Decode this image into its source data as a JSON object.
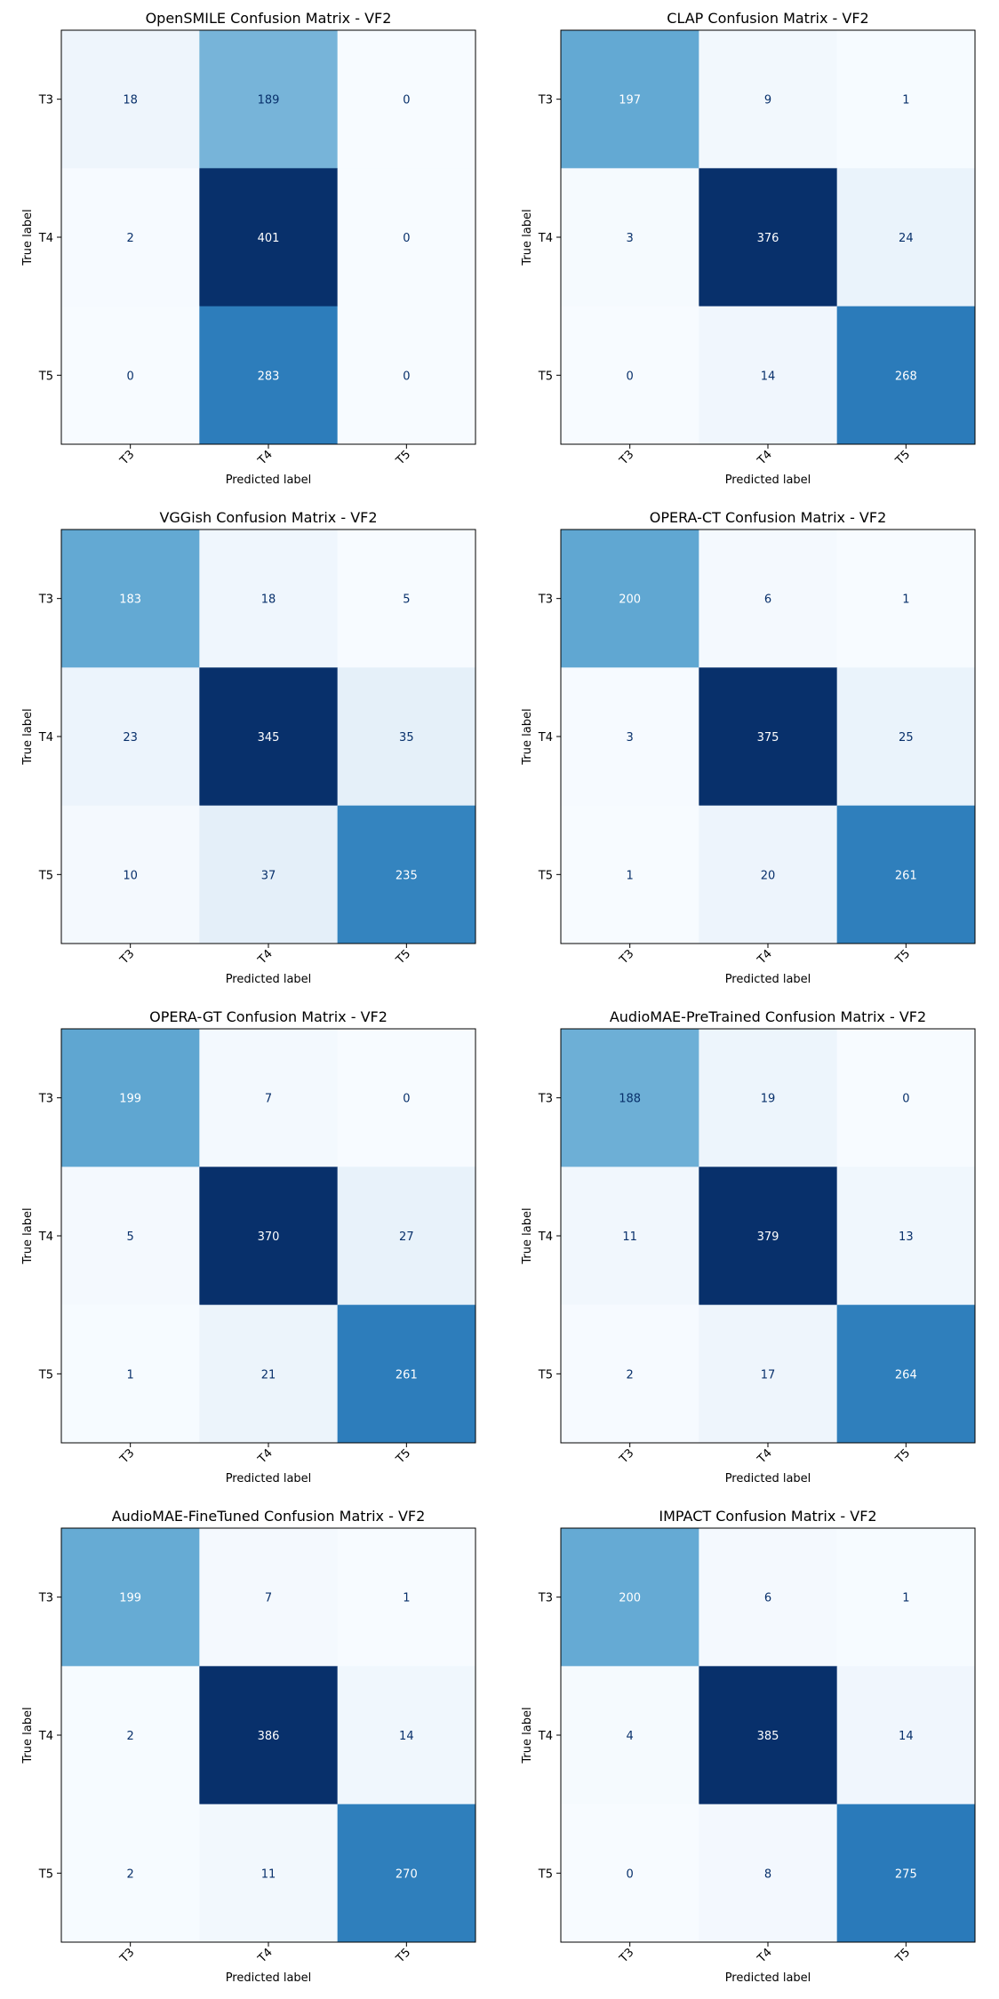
{
  "chart_data": [
    {
      "type": "heatmap",
      "title": "OpenSMILE Confusion Matrix - VF2",
      "xlabel": "Predicted label",
      "ylabel": "True label",
      "x_ticks": [
        "T3",
        "T4",
        "T5"
      ],
      "y_ticks": [
        "T3",
        "T4",
        "T5"
      ],
      "values": [
        [
          18,
          189,
          0
        ],
        [
          2,
          401,
          0
        ],
        [
          0,
          283,
          0
        ]
      ]
    },
    {
      "type": "heatmap",
      "title": "CLAP Confusion Matrix - VF2",
      "xlabel": "Predicted label",
      "ylabel": "True label",
      "x_ticks": [
        "T3",
        "T4",
        "T5"
      ],
      "y_ticks": [
        "T3",
        "T4",
        "T5"
      ],
      "values": [
        [
          197,
          9,
          1
        ],
        [
          3,
          376,
          24
        ],
        [
          0,
          14,
          268
        ]
      ]
    },
    {
      "type": "heatmap",
      "title": "VGGish Confusion Matrix - VF2",
      "xlabel": "Predicted label",
      "ylabel": "True label",
      "x_ticks": [
        "T3",
        "T4",
        "T5"
      ],
      "y_ticks": [
        "T3",
        "T4",
        "T5"
      ],
      "values": [
        [
          183,
          18,
          5
        ],
        [
          23,
          345,
          35
        ],
        [
          10,
          37,
          235
        ]
      ]
    },
    {
      "type": "heatmap",
      "title": "OPERA-CT Confusion Matrix - VF2",
      "xlabel": "Predicted label",
      "ylabel": "True label",
      "x_ticks": [
        "T3",
        "T4",
        "T5"
      ],
      "y_ticks": [
        "T3",
        "T4",
        "T5"
      ],
      "values": [
        [
          200,
          6,
          1
        ],
        [
          3,
          375,
          25
        ],
        [
          1,
          20,
          261
        ]
      ]
    },
    {
      "type": "heatmap",
      "title": "OPERA-GT Confusion Matrix - VF2",
      "xlabel": "Predicted label",
      "ylabel": "True label",
      "x_ticks": [
        "T3",
        "T4",
        "T5"
      ],
      "y_ticks": [
        "T3",
        "T4",
        "T5"
      ],
      "values": [
        [
          199,
          7,
          0
        ],
        [
          5,
          370,
          27
        ],
        [
          1,
          21,
          261
        ]
      ]
    },
    {
      "type": "heatmap",
      "title": "AudioMAE-PreTrained Confusion Matrix - VF2",
      "xlabel": "Predicted label",
      "ylabel": "True label",
      "x_ticks": [
        "T3",
        "T4",
        "T5"
      ],
      "y_ticks": [
        "T3",
        "T4",
        "T5"
      ],
      "values": [
        [
          188,
          19,
          0
        ],
        [
          11,
          379,
          13
        ],
        [
          2,
          17,
          264
        ]
      ]
    },
    {
      "type": "heatmap",
      "title": "AudioMAE-FineTuned Confusion Matrix - VF2",
      "xlabel": "Predicted label",
      "ylabel": "True label",
      "x_ticks": [
        "T3",
        "T4",
        "T5"
      ],
      "y_ticks": [
        "T3",
        "T4",
        "T5"
      ],
      "values": [
        [
          199,
          7,
          1
        ],
        [
          2,
          386,
          14
        ],
        [
          2,
          11,
          270
        ]
      ]
    },
    {
      "type": "heatmap",
      "title": "IMPACT Confusion Matrix - VF2",
      "xlabel": "Predicted label",
      "ylabel": "True label",
      "x_ticks": [
        "T3",
        "T4",
        "T5"
      ],
      "y_ticks": [
        "T3",
        "T4",
        "T5"
      ],
      "values": [
        [
          200,
          6,
          1
        ],
        [
          4,
          385,
          14
        ],
        [
          0,
          8,
          275
        ]
      ]
    }
  ]
}
